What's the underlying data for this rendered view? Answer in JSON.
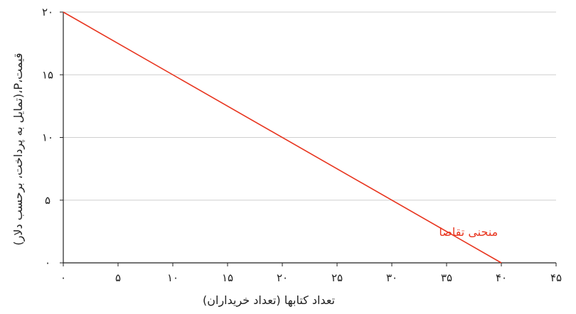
{
  "chart_data": {
    "type": "line",
    "xlabel": "تعداد کتابها (تعداد خریداران)",
    "ylabel": "قیمت،P،(تمایل به پرداخت، برحسب دلار)",
    "xlim": [
      0,
      45
    ],
    "ylim": [
      0,
      20
    ],
    "x_ticks": [
      {
        "value": 0,
        "label": "۰"
      },
      {
        "value": 5,
        "label": "۵"
      },
      {
        "value": 10,
        "label": "۱۰"
      },
      {
        "value": 15,
        "label": "۱۵"
      },
      {
        "value": 20,
        "label": "۲۰"
      },
      {
        "value": 25,
        "label": "۲۵"
      },
      {
        "value": 30,
        "label": "۳۰"
      },
      {
        "value": 35,
        "label": "۳۵"
      },
      {
        "value": 40,
        "label": "۴۰"
      },
      {
        "value": 45,
        "label": "۴۵"
      }
    ],
    "y_ticks": [
      {
        "value": 0,
        "label": "۰"
      },
      {
        "value": 5,
        "label": "۵"
      },
      {
        "value": 10,
        "label": "۱۰"
      },
      {
        "value": 15,
        "label": "۱۵"
      },
      {
        "value": 20,
        "label": "۲۰"
      }
    ],
    "grid": "horizontal",
    "series": [
      {
        "name": "منحنی تقاضا",
        "color": "#e8351f",
        "points": [
          [
            0,
            20
          ],
          [
            40,
            0
          ]
        ]
      }
    ],
    "annotations": [
      {
        "text": "منحنی تقاضا",
        "x": 37,
        "y": 2.5,
        "color": "#e8351f"
      }
    ]
  }
}
